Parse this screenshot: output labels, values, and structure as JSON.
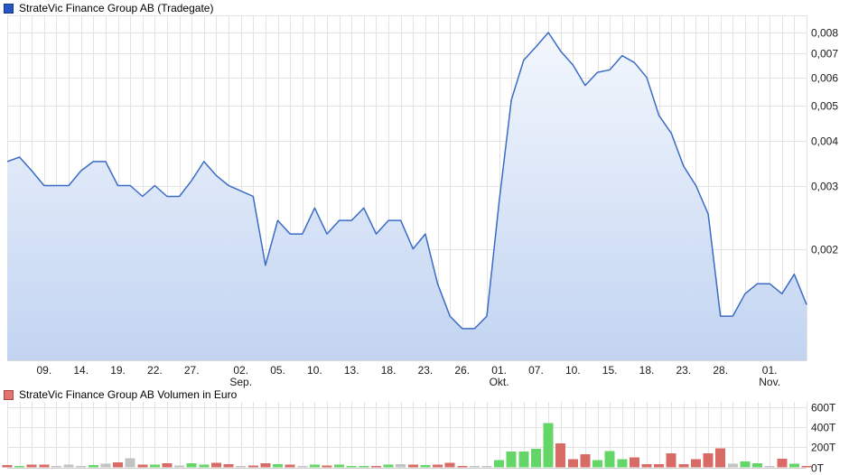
{
  "price_chart": {
    "legend": "StrateVic Finance Group AB (Tradegate)"
  },
  "volume_chart": {
    "legend": "StrateVic Finance Group AB Volumen in Euro"
  },
  "chart_data": [
    {
      "type": "area",
      "title": "StrateVic Finance Group AB (Tradegate)",
      "y_scale": "log",
      "ylim": [
        0.00098,
        0.0088
      ],
      "grid": true,
      "legend_position": "top-left",
      "line_color": "#3a6bc5",
      "area_top_color": "#f3f7fd",
      "area_bottom_color": "#c2d4f1",
      "y_ticks": [
        {
          "v": 0.008,
          "label": "0,008"
        },
        {
          "v": 0.007,
          "label": "0,007"
        },
        {
          "v": 0.006,
          "label": "0,006"
        },
        {
          "v": 0.005,
          "label": "0,005"
        },
        {
          "v": 0.004,
          "label": "0,004"
        },
        {
          "v": 0.003,
          "label": "0,003"
        },
        {
          "v": 0.002,
          "label": "0,002"
        }
      ],
      "x_ticks": [
        {
          "day": 3,
          "label": "09."
        },
        {
          "day": 6,
          "label": "14."
        },
        {
          "day": 9,
          "label": "19."
        },
        {
          "day": 12,
          "label": "22."
        },
        {
          "day": 15,
          "label": "27."
        },
        {
          "day": 19,
          "label": "02.",
          "month": "Sep."
        },
        {
          "day": 22,
          "label": "05."
        },
        {
          "day": 25,
          "label": "10."
        },
        {
          "day": 28,
          "label": "13."
        },
        {
          "day": 31,
          "label": "18."
        },
        {
          "day": 34,
          "label": "23."
        },
        {
          "day": 37,
          "label": "26."
        },
        {
          "day": 40,
          "label": "01.",
          "month": "Okt."
        },
        {
          "day": 43,
          "label": "07."
        },
        {
          "day": 46,
          "label": "10."
        },
        {
          "day": 49,
          "label": "15."
        },
        {
          "day": 52,
          "label": "18."
        },
        {
          "day": 55,
          "label": "23."
        },
        {
          "day": 58,
          "label": "28."
        },
        {
          "day": 62,
          "label": "01.",
          "month": "Nov."
        }
      ],
      "values": [
        0.0035,
        0.0036,
        0.0033,
        0.003,
        0.003,
        0.003,
        0.0033,
        0.0035,
        0.0035,
        0.003,
        0.003,
        0.0028,
        0.003,
        0.0028,
        0.0028,
        0.0031,
        0.0035,
        0.0032,
        0.003,
        0.0029,
        0.0028,
        0.0018,
        0.0024,
        0.0022,
        0.0022,
        0.0026,
        0.0022,
        0.0024,
        0.0024,
        0.0026,
        0.0022,
        0.0024,
        0.0024,
        0.002,
        0.0022,
        0.0016,
        0.0013,
        0.0012,
        0.0012,
        0.0013,
        0.0027,
        0.0052,
        0.0067,
        0.0073,
        0.008,
        0.0071,
        0.0065,
        0.0057,
        0.0062,
        0.0063,
        0.0069,
        0.0066,
        0.006,
        0.0047,
        0.0042,
        0.0034,
        0.003,
        0.0025,
        0.0013,
        0.0013,
        0.0015,
        0.0016,
        0.0016,
        0.0015,
        0.0017,
        0.0014
      ]
    },
    {
      "type": "bar",
      "title": "StrateVic Finance Group AB Volumen in Euro",
      "unit": "T",
      "grid": true,
      "colors": {
        "up": "#63d667",
        "down": "#d96b66",
        "flat": "#c2c2c2"
      },
      "y_ticks": [
        {
          "v": 600,
          "label": "600T"
        },
        {
          "v": 400,
          "label": "400T"
        },
        {
          "v": 200,
          "label": "200T"
        },
        {
          "v": 0,
          "label": "0T"
        }
      ],
      "bars": [
        {
          "v": 22,
          "c": "down"
        },
        {
          "v": 14,
          "c": "up"
        },
        {
          "v": 28,
          "c": "down"
        },
        {
          "v": 28,
          "c": "down"
        },
        {
          "v": 11,
          "c": "flat"
        },
        {
          "v": 25,
          "c": "flat"
        },
        {
          "v": 11,
          "c": "flat"
        },
        {
          "v": 22,
          "c": "up"
        },
        {
          "v": 36,
          "c": "flat"
        },
        {
          "v": 50,
          "c": "down"
        },
        {
          "v": 89,
          "c": "flat"
        },
        {
          "v": 28,
          "c": "down"
        },
        {
          "v": 28,
          "c": "up"
        },
        {
          "v": 42,
          "c": "down"
        },
        {
          "v": 19,
          "c": "flat"
        },
        {
          "v": 42,
          "c": "up"
        },
        {
          "v": 28,
          "c": "up"
        },
        {
          "v": 47,
          "c": "down"
        },
        {
          "v": 33,
          "c": "down"
        },
        {
          "v": 14,
          "c": "flat"
        },
        {
          "v": 17,
          "c": "down"
        },
        {
          "v": 42,
          "c": "down"
        },
        {
          "v": 31,
          "c": "up"
        },
        {
          "v": 25,
          "c": "down"
        },
        {
          "v": 11,
          "c": "flat"
        },
        {
          "v": 28,
          "c": "up"
        },
        {
          "v": 17,
          "c": "down"
        },
        {
          "v": 28,
          "c": "up"
        },
        {
          "v": 14,
          "c": "up"
        },
        {
          "v": 11,
          "c": "up"
        },
        {
          "v": 14,
          "c": "down"
        },
        {
          "v": 28,
          "c": "up"
        },
        {
          "v": 31,
          "c": "flat"
        },
        {
          "v": 28,
          "c": "down"
        },
        {
          "v": 22,
          "c": "up"
        },
        {
          "v": 25,
          "c": "down"
        },
        {
          "v": 47,
          "c": "down"
        },
        {
          "v": 11,
          "c": "down"
        },
        {
          "v": 6,
          "c": "flat"
        },
        {
          "v": 5,
          "c": "flat"
        },
        {
          "v": 70,
          "c": "up"
        },
        {
          "v": 157,
          "c": "up"
        },
        {
          "v": 157,
          "c": "up"
        },
        {
          "v": 186,
          "c": "up"
        },
        {
          "v": 440,
          "c": "up"
        },
        {
          "v": 240,
          "c": "down"
        },
        {
          "v": 80,
          "c": "down"
        },
        {
          "v": 130,
          "c": "down"
        },
        {
          "v": 70,
          "c": "up"
        },
        {
          "v": 160,
          "c": "up"
        },
        {
          "v": 80,
          "c": "up"
        },
        {
          "v": 100,
          "c": "down"
        },
        {
          "v": 30,
          "c": "down"
        },
        {
          "v": 30,
          "c": "down"
        },
        {
          "v": 140,
          "c": "down"
        },
        {
          "v": 30,
          "c": "down"
        },
        {
          "v": 80,
          "c": "down"
        },
        {
          "v": 140,
          "c": "down"
        },
        {
          "v": 190,
          "c": "down"
        },
        {
          "v": 35,
          "c": "flat"
        },
        {
          "v": 60,
          "c": "up"
        },
        {
          "v": 40,
          "c": "up"
        },
        {
          "v": 12,
          "c": "flat"
        },
        {
          "v": 85,
          "c": "down"
        },
        {
          "v": 35,
          "c": "up"
        },
        {
          "v": 10,
          "c": "down"
        }
      ]
    }
  ]
}
